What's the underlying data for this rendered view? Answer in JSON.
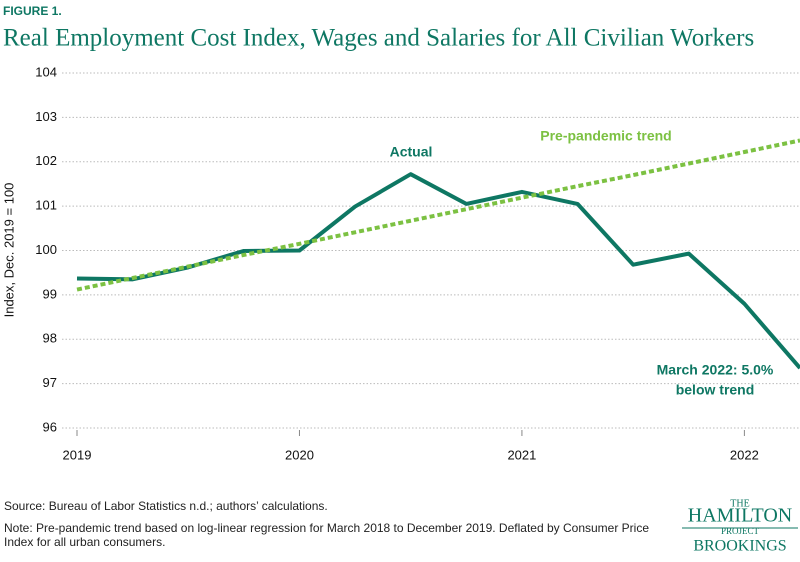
{
  "figure_label": "FIGURE 1.",
  "chart_data": {
    "type": "line",
    "title": "Real Employment Cost Index, Wages and Salaries for All Civilian Workers",
    "y_label": "Index, Dec. 2019 = 100",
    "x": [
      2019,
      2019.25,
      2019.5,
      2019.75,
      2020,
      2020.25,
      2020.5,
      2020.75,
      2021,
      2021.25,
      2021.5,
      2021.75,
      2022,
      2022.25
    ],
    "series": [
      {
        "name": "Actual",
        "color": "#0e7763",
        "dashed": false,
        "values": [
          99.37,
          99.35,
          99.62,
          99.99,
          100.0,
          100.99,
          101.72,
          101.05,
          101.32,
          101.05,
          99.68,
          99.93,
          98.8,
          97.35
        ]
      },
      {
        "name": "Pre-pandemic trend",
        "color": "#7cc142",
        "dashed": true,
        "values": [
          99.12,
          99.38,
          99.64,
          99.9,
          100.15,
          100.41,
          100.67,
          100.93,
          101.19,
          101.45,
          101.7,
          101.96,
          102.22,
          102.48
        ]
      }
    ],
    "annotation": [
      "March 2022: 5.0%",
      "below trend"
    ],
    "xlim": [
      2019,
      2022.25
    ],
    "xticks": [
      2019,
      2020,
      2021,
      2022
    ],
    "ylim": [
      96,
      104
    ],
    "yticks": [
      96,
      97,
      98,
      99,
      100,
      101,
      102,
      103,
      104
    ],
    "grid": true
  },
  "source": "Source: Bureau of Labor Statistics n.d.; authors’ calculations.",
  "note": "Note: Pre-pandemic trend based on log-linear regression for March 2018 to December 2019. Deflated by Consumer Price Index for all urban consumers.",
  "logo": {
    "the": "THE",
    "hamilton": "HAMILTON",
    "project": "PROJECT",
    "brookings": "BROOKINGS"
  }
}
